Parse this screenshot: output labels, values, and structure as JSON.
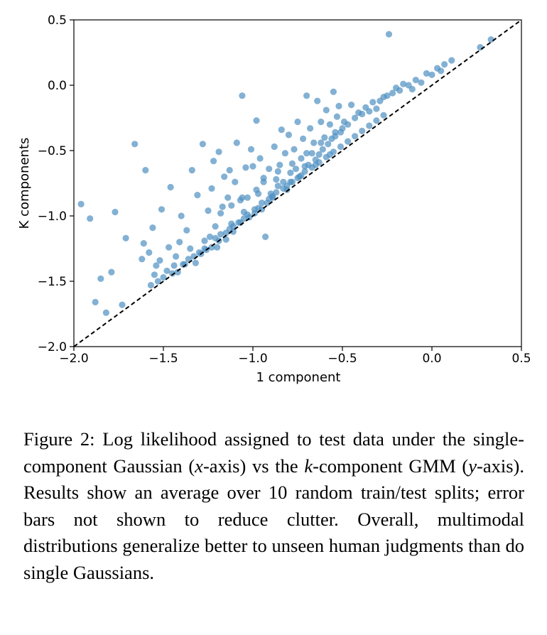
{
  "caption": {
    "parts": [
      "Figure 2: Log likelihood assigned to test data under the single-component Gaussian (",
      "x",
      "-axis) vs the ",
      "k",
      "-component GMM (",
      "y",
      "-axis). Results show an average over 10 random train/test splits; error bars not shown to reduce clutter. Overall, multimodal distributions generalize better to unseen human judgments than do single Gaussians."
    ]
  },
  "chart_data": {
    "type": "scatter",
    "xlabel": "1 component",
    "ylabel": "K components",
    "xlim": [
      -2.0,
      0.5
    ],
    "ylim": [
      -2.0,
      0.5
    ],
    "xticks": [
      -2.0,
      -1.5,
      -1.0,
      -0.5,
      0.0,
      0.5
    ],
    "yticks": [
      -2.0,
      -1.5,
      -1.0,
      -0.5,
      0.0,
      0.5
    ],
    "xtick_labels": [
      "−2.0",
      "−1.5",
      "−1.0",
      "−0.5",
      "0.0",
      "0.5"
    ],
    "ytick_labels": [
      "−2.0",
      "−1.5",
      "−1.0",
      "−0.5",
      "0.0",
      "0.5"
    ],
    "reference_line": {
      "style": "dashed",
      "color": "#000000",
      "from": [
        -2.0,
        -2.0
      ],
      "to": [
        0.5,
        0.5
      ]
    },
    "marker_color": "#4f90c2",
    "grid": false,
    "points": [
      [
        -1.96,
        -0.91
      ],
      [
        -1.91,
        -1.02
      ],
      [
        -1.88,
        -1.66
      ],
      [
        -1.85,
        -1.48
      ],
      [
        -1.82,
        -1.74
      ],
      [
        -1.79,
        -1.43
      ],
      [
        -1.77,
        -0.97
      ],
      [
        -1.73,
        -1.68
      ],
      [
        -1.71,
        -1.17
      ],
      [
        -1.66,
        -0.45
      ],
      [
        -1.62,
        -1.33
      ],
      [
        -1.61,
        -1.21
      ],
      [
        -1.6,
        -0.65
      ],
      [
        -1.58,
        -1.28
      ],
      [
        -1.57,
        -1.53
      ],
      [
        -1.56,
        -1.09
      ],
      [
        -1.55,
        -1.45
      ],
      [
        -1.54,
        -1.38
      ],
      [
        -1.53,
        -1.5
      ],
      [
        -1.52,
        -1.34
      ],
      [
        -1.51,
        -0.95
      ],
      [
        -1.5,
        -1.47
      ],
      [
        -1.48,
        -1.42
      ],
      [
        -1.47,
        -1.24
      ],
      [
        -1.46,
        -0.78
      ],
      [
        -1.45,
        -1.44
      ],
      [
        -1.44,
        -1.38
      ],
      [
        -1.43,
        -1.31
      ],
      [
        -1.42,
        -1.43
      ],
      [
        -1.41,
        -1.2
      ],
      [
        -1.4,
        -1.0
      ],
      [
        -1.39,
        -1.37
      ],
      [
        -1.38,
        -1.37
      ],
      [
        -1.37,
        -1.11
      ],
      [
        -1.36,
        -1.33
      ],
      [
        -1.35,
        -1.25
      ],
      [
        -1.34,
        -0.65
      ],
      [
        -1.33,
        -1.31
      ],
      [
        -1.32,
        -1.36
      ],
      [
        -1.31,
        -0.84
      ],
      [
        -1.3,
        -1.28
      ],
      [
        -1.29,
        -1.29
      ],
      [
        -1.28,
        -0.45
      ],
      [
        -1.27,
        -1.19
      ],
      [
        -1.26,
        -1.26
      ],
      [
        -1.25,
        -0.96
      ],
      [
        -1.24,
        -1.16
      ],
      [
        -1.23,
        -0.79
      ],
      [
        -1.22,
        -0.58
      ],
      [
        -1.21,
        -1.08
      ],
      [
        -1.2,
        -1.24
      ],
      [
        -1.19,
        -0.51
      ],
      [
        -1.18,
        -1.14
      ],
      [
        -1.17,
        -0.93
      ],
      [
        -1.16,
        -0.7
      ],
      [
        -1.15,
        -1.18
      ],
      [
        -1.14,
        -0.86
      ],
      [
        -1.13,
        -0.65
      ],
      [
        -1.12,
        -1.06
      ],
      [
        -1.11,
        -1.12
      ],
      [
        -1.1,
        -0.74
      ],
      [
        -1.09,
        -0.44
      ],
      [
        -1.08,
        -1.05
      ],
      [
        -1.07,
        -0.88
      ],
      [
        -1.06,
        -0.08
      ],
      [
        -1.05,
        -0.97
      ],
      [
        -1.04,
        -0.63
      ],
      [
        -1.03,
        -0.86
      ],
      [
        -1.02,
        -1.01
      ],
      [
        -1.01,
        -0.49
      ],
      [
        -1.0,
        -0.62
      ],
      [
        -0.99,
        -0.98
      ],
      [
        -0.98,
        -0.27
      ],
      [
        -0.97,
        -0.83
      ],
      [
        -0.96,
        -0.56
      ],
      [
        -0.95,
        -0.95
      ],
      [
        -0.94,
        -0.71
      ],
      [
        -0.93,
        -1.16
      ],
      [
        -0.92,
        -0.9
      ],
      [
        -0.91,
        -0.64
      ],
      [
        -0.9,
        -0.83
      ],
      [
        -0.89,
        -0.85
      ],
      [
        -0.88,
        -0.47
      ],
      [
        -0.87,
        -0.72
      ],
      [
        -0.86,
        -0.77
      ],
      [
        -0.85,
        -0.61
      ],
      [
        -0.84,
        -0.34
      ],
      [
        -0.83,
        -0.74
      ],
      [
        -0.82,
        -0.52
      ],
      [
        -0.81,
        -0.8
      ],
      [
        -0.8,
        -0.38
      ],
      [
        -0.79,
        -0.67
      ],
      [
        -0.78,
        -0.74
      ],
      [
        -0.77,
        -0.49
      ],
      [
        -0.76,
        -0.64
      ],
      [
        -0.75,
        -0.28
      ],
      [
        -0.74,
        -0.7
      ],
      [
        -0.73,
        -0.56
      ],
      [
        -0.72,
        -0.41
      ],
      [
        -0.71,
        -0.62
      ],
      [
        -0.7,
        -0.08
      ],
      [
        -0.69,
        -0.61
      ],
      [
        -0.68,
        -0.33
      ],
      [
        -0.67,
        -0.52
      ],
      [
        -0.66,
        -0.44
      ],
      [
        -0.65,
        -0.57
      ],
      [
        -0.64,
        -0.12
      ],
      [
        -0.63,
        -0.53
      ],
      [
        -0.62,
        -0.28
      ],
      [
        -0.61,
        -0.49
      ],
      [
        -0.6,
        -0.4
      ],
      [
        -0.59,
        -0.19
      ],
      [
        -0.58,
        -0.45
      ],
      [
        -0.57,
        -0.3
      ],
      [
        -0.56,
        -0.41
      ],
      [
        -0.55,
        -0.05
      ],
      [
        -0.54,
        -0.39
      ],
      [
        -0.53,
        -0.24
      ],
      [
        -0.52,
        -0.16
      ],
      [
        -0.51,
        -0.36
      ],
      [
        -0.5,
        -0.33
      ],
      [
        -0.49,
        -0.28
      ],
      [
        -0.47,
        -0.3
      ],
      [
        -0.45,
        -0.15
      ],
      [
        -0.43,
        -0.25
      ],
      [
        -0.41,
        -0.21
      ],
      [
        -0.39,
        -0.22
      ],
      [
        -0.37,
        -0.17
      ],
      [
        -0.35,
        -0.2
      ],
      [
        -0.33,
        -0.13
      ],
      [
        -0.31,
        -0.18
      ],
      [
        -0.29,
        -0.12
      ],
      [
        -0.27,
        -0.09
      ],
      [
        -0.25,
        -0.08
      ],
      [
        -0.24,
        0.39
      ],
      [
        -0.22,
        -0.06
      ],
      [
        -0.2,
        -0.02
      ],
      [
        -0.18,
        -0.04
      ],
      [
        -0.16,
        0.01
      ],
      [
        -0.13,
        0.0
      ],
      [
        -0.11,
        -0.03
      ],
      [
        -0.09,
        0.04
      ],
      [
        -0.06,
        0.02
      ],
      [
        -0.03,
        0.09
      ],
      [
        0.0,
        0.08
      ],
      [
        0.03,
        0.13
      ],
      [
        0.05,
        0.11
      ],
      [
        0.07,
        0.16
      ],
      [
        0.11,
        0.19
      ],
      [
        0.27,
        0.29
      ],
      [
        0.33,
        0.35
      ],
      [
        -1.23,
        -1.24
      ],
      [
        -1.19,
        -1.19
      ],
      [
        -1.15,
        -1.13
      ],
      [
        -1.11,
        -1.08
      ],
      [
        -1.07,
        -1.05
      ],
      [
        -1.03,
        -0.99
      ],
      [
        -0.99,
        -0.95
      ],
      [
        -0.95,
        -0.9
      ],
      [
        -0.91,
        -0.87
      ],
      [
        -0.87,
        -0.82
      ],
      [
        -0.83,
        -0.79
      ],
      [
        -0.79,
        -0.74
      ],
      [
        -0.75,
        -0.71
      ],
      [
        -0.71,
        -0.66
      ],
      [
        -0.67,
        -0.63
      ],
      [
        -0.63,
        -0.59
      ],
      [
        -0.59,
        -0.55
      ],
      [
        -0.55,
        -0.51
      ],
      [
        -0.51,
        -0.47
      ],
      [
        -0.47,
        -0.43
      ],
      [
        -0.43,
        -0.39
      ],
      [
        -0.39,
        -0.35
      ],
      [
        -0.35,
        -0.31
      ],
      [
        -0.31,
        -0.27
      ],
      [
        -0.27,
        -0.23
      ],
      [
        -1.27,
        -1.25
      ],
      [
        -1.21,
        -1.17
      ],
      [
        -1.13,
        -1.1
      ],
      [
        -1.05,
        -1.02
      ],
      [
        -0.97,
        -0.94
      ],
      [
        -0.89,
        -0.86
      ],
      [
        -0.81,
        -0.77
      ],
      [
        -0.73,
        -0.69
      ],
      [
        -0.65,
        -0.61
      ],
      [
        -0.57,
        -0.53
      ],
      [
        -1.18,
        -0.98
      ],
      [
        -1.12,
        -0.92
      ],
      [
        -1.06,
        -0.86
      ],
      [
        -0.98,
        -0.8
      ],
      [
        -0.94,
        -0.74
      ],
      [
        -0.86,
        -0.66
      ],
      [
        -0.78,
        -0.6
      ],
      [
        -0.7,
        -0.52
      ],
      [
        -0.62,
        -0.44
      ],
      [
        -0.54,
        -0.36
      ]
    ]
  }
}
